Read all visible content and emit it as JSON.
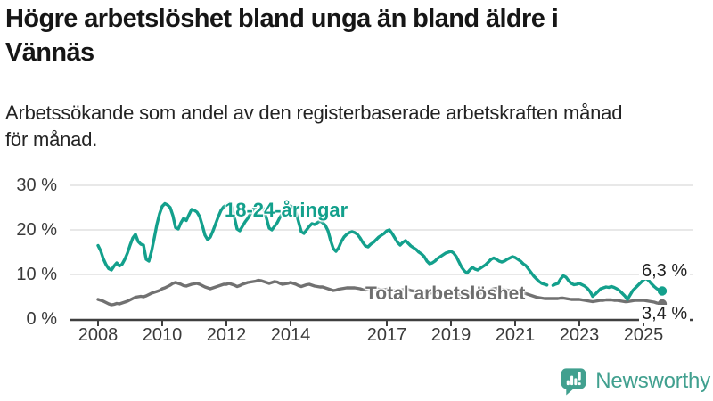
{
  "header": {
    "title": "Högre arbetslöshet bland unga än bland äldre i Vännäs",
    "title_lines": [
      "Högre arbetslöshet bland unga än bland äldre i",
      "Vännäs"
    ],
    "subtitle": "Arbetssökande som andel av den registerbaserade arbetskraften månad för månad.",
    "subtitle_lines": [
      "Arbetssökande som andel av den registerbaserade arbetskraften månad",
      "för månad."
    ]
  },
  "footer": {
    "brand": "Newsworthy",
    "icon": "newsworthy-speech-bubble-bar-chart-icon"
  },
  "colors": {
    "young_line": "#13a08c",
    "total_line": "#717171",
    "grid": "#d9d9d9",
    "axis": "#3f3f3f",
    "tick_text": "#3a3a3a",
    "brand": "#41a08f"
  },
  "chart_data": {
    "type": "line",
    "unit": "%",
    "frequency": "monthly",
    "start": "2008-01",
    "end": "2025-08",
    "ylim": [
      0,
      32
    ],
    "grid": true,
    "y_ticks": [
      0,
      10,
      20,
      30
    ],
    "y_tick_labels": [
      "0 %",
      "10 %",
      "20 %",
      "30 %"
    ],
    "x_tick_years": [
      2008,
      2010,
      2012,
      2014,
      2017,
      2019,
      2021,
      2023,
      2025
    ],
    "series": [
      {
        "name": "18-24-åringar",
        "color": "#13a08c",
        "end_label": "6,3 %",
        "end_value": 6.3,
        "dashed_gap": [
          "2021-11",
          "2022-05"
        ],
        "values": [
          16.5,
          15.3,
          13.5,
          12.2,
          11.3,
          11.0,
          11.9,
          12.6,
          11.9,
          12.3,
          13.4,
          14.8,
          16.6,
          18.2,
          19.0,
          17.4,
          16.8,
          16.6,
          13.4,
          13.0,
          15.2,
          18.1,
          21.2,
          23.6,
          25.3,
          25.9,
          25.6,
          25.0,
          23.2,
          20.5,
          20.2,
          21.6,
          22.6,
          22.1,
          23.4,
          24.6,
          24.4,
          24.0,
          23.0,
          21.0,
          18.8,
          17.8,
          18.4,
          19.8,
          21.4,
          23.0,
          24.4,
          25.2,
          25.6,
          26.0,
          25.2,
          22.8,
          20.2,
          19.8,
          20.8,
          21.8,
          22.6,
          23.6,
          24.6,
          25.2,
          25.8,
          25.4,
          24.6,
          22.6,
          20.4,
          20.0,
          20.8,
          21.6,
          22.8,
          23.8,
          24.6,
          25.2,
          25.4,
          25.0,
          24.0,
          21.8,
          19.6,
          19.2,
          20.0,
          20.8,
          21.4,
          21.2,
          21.6,
          22.0,
          21.6,
          21.0,
          19.8,
          17.6,
          15.8,
          15.2,
          16.0,
          17.4,
          18.4,
          19.0,
          19.4,
          19.6,
          19.4,
          19.0,
          18.2,
          17.2,
          16.4,
          16.2,
          16.8,
          17.2,
          17.8,
          18.4,
          18.8,
          19.2,
          19.8,
          20.0,
          19.2,
          18.2,
          17.2,
          16.6,
          17.2,
          17.6,
          17.0,
          16.4,
          16.0,
          15.6,
          15.0,
          14.6,
          14.0,
          13.0,
          12.4,
          12.6,
          13.0,
          13.6,
          14.0,
          14.4,
          14.8,
          15.0,
          15.2,
          14.8,
          14.0,
          12.8,
          11.6,
          10.8,
          10.3,
          11.0,
          11.6,
          11.2,
          11.0,
          11.4,
          11.8,
          12.2,
          12.8,
          13.4,
          13.7,
          13.4,
          13.0,
          12.8,
          13.0,
          13.4,
          13.7,
          14.0,
          13.8,
          13.4,
          13.0,
          12.4,
          12.0,
          11.2,
          10.4,
          9.6,
          9.0,
          8.4,
          8.0,
          7.8,
          7.6,
          7.4,
          7.5,
          7.8,
          8.0,
          9.0,
          9.7,
          9.4,
          8.6,
          8.0,
          7.7,
          7.8,
          8.0,
          7.7,
          7.4,
          6.9,
          6.2,
          5.1,
          5.6,
          6.2,
          6.8,
          7.0,
          7.2,
          7.1,
          7.3,
          7.1,
          6.8,
          6.4,
          5.8,
          5.2,
          4.4,
          5.4,
          6.4,
          7.0,
          7.6,
          8.2,
          8.8,
          9.1,
          8.6,
          7.9,
          7.3,
          6.8,
          6.5,
          6.3
        ]
      },
      {
        "name": "Total arbetslöshet",
        "color": "#717171",
        "end_label": "3,4 %",
        "end_value": 3.4,
        "values": [
          4.4,
          4.2,
          4.0,
          3.7,
          3.4,
          3.2,
          3.3,
          3.5,
          3.4,
          3.6,
          3.8,
          4.0,
          4.3,
          4.6,
          4.9,
          5.0,
          5.1,
          5.0,
          5.2,
          5.5,
          5.8,
          6.0,
          6.2,
          6.4,
          6.8,
          7.0,
          7.3,
          7.6,
          8.0,
          8.2,
          8.0,
          7.8,
          7.5,
          7.4,
          7.6,
          7.8,
          7.9,
          8.0,
          7.8,
          7.5,
          7.2,
          7.0,
          6.8,
          7.0,
          7.2,
          7.4,
          7.6,
          7.8,
          7.8,
          8.0,
          7.8,
          7.6,
          7.3,
          7.5,
          7.8,
          8.0,
          8.2,
          8.3,
          8.4,
          8.5,
          8.7,
          8.6,
          8.4,
          8.2,
          8.0,
          8.2,
          8.4,
          8.3,
          8.0,
          7.8,
          7.9,
          8.0,
          8.2,
          8.0,
          7.8,
          7.5,
          7.3,
          7.5,
          7.7,
          7.8,
          7.6,
          7.4,
          7.3,
          7.2,
          7.2,
          7.0,
          6.8,
          6.6,
          6.4,
          6.5,
          6.7,
          6.8,
          6.9,
          7.0,
          7.0,
          7.0,
          7.0,
          6.9,
          6.8,
          6.6,
          6.5,
          6.6,
          6.8,
          6.9,
          6.8,
          6.7,
          6.6,
          6.6,
          6.7,
          6.6,
          6.5,
          6.4,
          6.3,
          6.4,
          6.6,
          6.7,
          6.6,
          6.4,
          6.3,
          6.3,
          6.2,
          6.1,
          6.0,
          5.9,
          5.8,
          5.9,
          6.0,
          6.0,
          5.9,
          5.8,
          5.8,
          5.8,
          5.8,
          5.7,
          5.6,
          5.5,
          5.4,
          5.5,
          5.7,
          5.8,
          5.8,
          5.7,
          5.7,
          5.8,
          5.9,
          6.0,
          6.3,
          6.6,
          6.8,
          6.9,
          6.8,
          6.7,
          6.6,
          6.5,
          6.4,
          6.4,
          6.4,
          6.3,
          6.1,
          5.9,
          5.7,
          5.5,
          5.3,
          5.1,
          4.9,
          4.8,
          4.7,
          4.6,
          4.6,
          4.6,
          4.6,
          4.6,
          4.6,
          4.7,
          4.7,
          4.6,
          4.5,
          4.4,
          4.4,
          4.4,
          4.4,
          4.3,
          4.2,
          4.1,
          4.0,
          3.9,
          4.0,
          4.1,
          4.2,
          4.2,
          4.3,
          4.3,
          4.3,
          4.2,
          4.2,
          4.1,
          4.0,
          3.9,
          3.9,
          4.0,
          4.1,
          4.2,
          4.2,
          4.2,
          4.2,
          4.1,
          4.0,
          3.9,
          3.8,
          3.6,
          3.5,
          3.4
        ]
      }
    ]
  }
}
